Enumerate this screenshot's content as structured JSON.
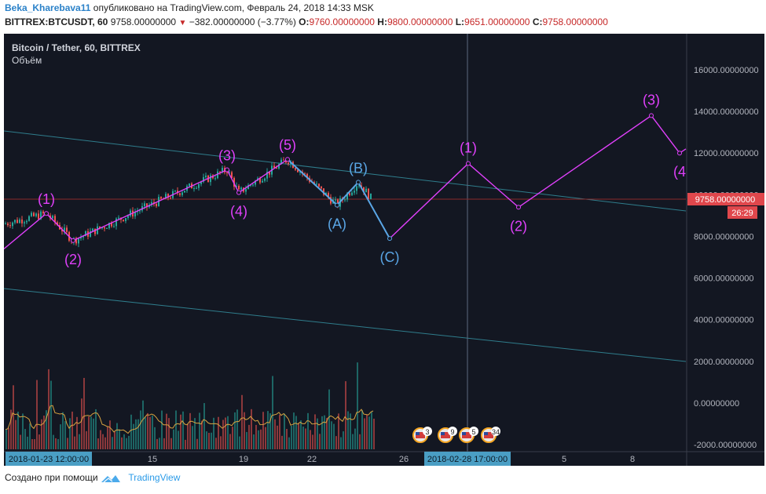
{
  "header": {
    "username": "Beka_Kharebava11",
    "published": "опубликовано на TradingView.com, Февраль 24, 2018 14:33 MSK",
    "symbol": "BITTREX:BTCUSDT, 60",
    "last": "9758.00000000",
    "change": "−382.00000000 (−3.77%)",
    "o_label": "O:",
    "o": "9760.00000000",
    "h_label": "H:",
    "h": "9800.00000000",
    "l_label": "L:",
    "l": "9651.00000000",
    "c_label": "C:",
    "c": "9758.00000000"
  },
  "legend": {
    "title": "Bitcoin / Tether, 60, BITTREX",
    "volume": "Объём"
  },
  "footer": {
    "created_with": "Создано при помощи",
    "brand": "TradingView"
  },
  "colors": {
    "background": "#131722",
    "wave": "#e040fb",
    "correction": "#5aa6e6",
    "price_line": "#c62828",
    "up": "#26a69a",
    "down": "#ef5350"
  },
  "chart_data": {
    "type": "line",
    "y_ticks": [
      "16000.00000000",
      "14000.00000000",
      "12000.00000000",
      "10000.00000000",
      "8000.00000000",
      "6000.00000000",
      "4000.00000000",
      "2000.00000000",
      "0.00000000",
      "-2000.00000000"
    ],
    "ylim": [
      -2000,
      16000
    ],
    "x_ticks": [
      "15",
      "19",
      "22",
      "26",
      "5",
      "8"
    ],
    "crosshair_x_label": "2018-01-23 12:00:00",
    "crosshair_x_label_right": "2018-02-28 17:00:00",
    "last_price_label": "9758.00000000",
    "countdown_label": "26:29",
    "impulse_wave": [
      {
        "label": "(1)",
        "y": 9100
      },
      {
        "label": "(2)",
        "y": 7800
      },
      {
        "label": "(3)",
        "y": 11200
      },
      {
        "label": "(4)",
        "y": 10100
      },
      {
        "label": "(5)",
        "y": 11700
      }
    ],
    "correction_wave": [
      {
        "label": "(A)",
        "y": 9500
      },
      {
        "label": "(B)",
        "y": 10600
      },
      {
        "label": "(C)",
        "y": 7900
      }
    ],
    "projection_wave": [
      {
        "label": "(1)",
        "y": 11500
      },
      {
        "label": "(2)",
        "y": 9400
      },
      {
        "label": "(3)",
        "y": 13800
      },
      {
        "label": "(4",
        "y": 12000
      }
    ],
    "event_badges": [
      "3",
      "9",
      "5",
      "34"
    ]
  }
}
